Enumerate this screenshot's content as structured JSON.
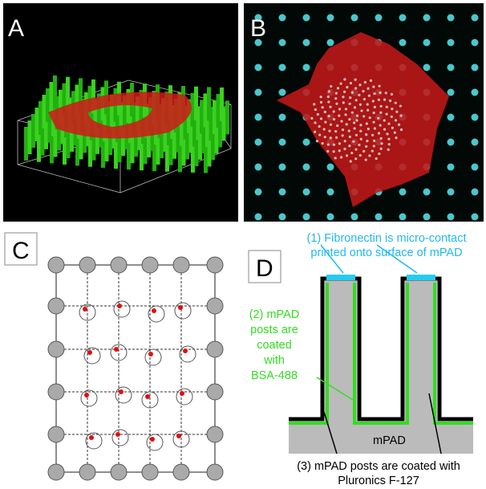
{
  "panels": {
    "a": {
      "label": "A"
    },
    "b": {
      "label": "B"
    },
    "c": {
      "label": "C"
    },
    "d": {
      "label": "D",
      "fibronectin": [
        "(1) Fibronectin is micro-contact",
        "printed onto surface of mPAD"
      ],
      "bsa": [
        "(2) mPAD",
        "posts are",
        "coated",
        "with",
        "BSA-488"
      ],
      "substrate": "mPAD",
      "pluronics": [
        "(3) mPAD posts are coated with",
        "Pluronics F-127"
      ]
    }
  }
}
